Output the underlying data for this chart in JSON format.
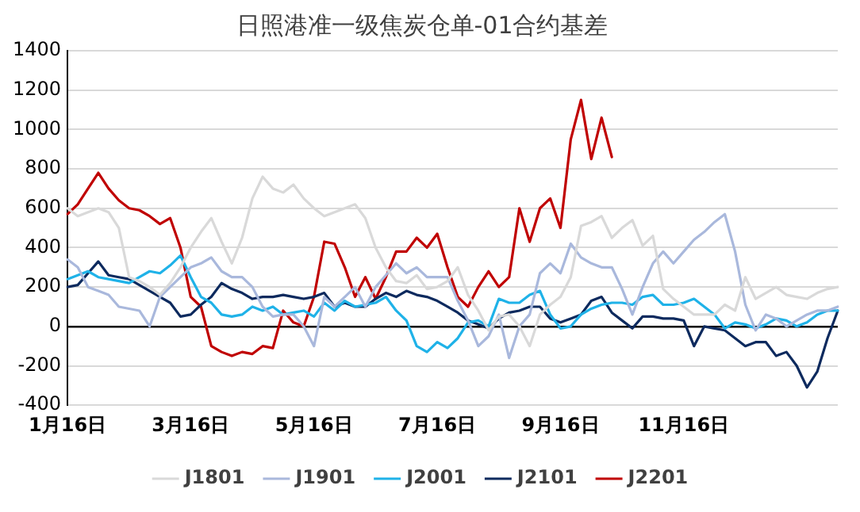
{
  "chart_data": {
    "type": "line",
    "title": "日照港准一级焦炭仓单-01合约基差",
    "categories": [
      "1月16日",
      null,
      null,
      null,
      null,
      null,
      null,
      null,
      null,
      null,
      null,
      null,
      "3月16日",
      null,
      null,
      null,
      null,
      null,
      null,
      null,
      null,
      null,
      null,
      null,
      "5月16日",
      null,
      null,
      null,
      null,
      null,
      null,
      null,
      null,
      null,
      null,
      null,
      "7月16日",
      null,
      null,
      null,
      null,
      null,
      null,
      null,
      null,
      null,
      null,
      null,
      "9月16日",
      null,
      null,
      null,
      null,
      null,
      null,
      null,
      null,
      null,
      null,
      null,
      "11月16日",
      null,
      null,
      null,
      null,
      null,
      null,
      null,
      null,
      null,
      null,
      null,
      null,
      null,
      null,
      null
    ],
    "series": [
      {
        "name": "J1801",
        "color": "#d9d9d9",
        "values": [
          600,
          560,
          580,
          600,
          580,
          500,
          250,
          230,
          200,
          160,
          220,
          300,
          400,
          480,
          550,
          430,
          320,
          450,
          650,
          760,
          700,
          680,
          720,
          650,
          600,
          560,
          580,
          600,
          620,
          550,
          400,
          300,
          230,
          220,
          260,
          190,
          200,
          230,
          300,
          160,
          80,
          -20,
          50,
          60,
          0,
          -100,
          60,
          110,
          150,
          250,
          510,
          530,
          560,
          450,
          500,
          540,
          410,
          460,
          190,
          140,
          100,
          60,
          60,
          60,
          110,
          80,
          250,
          140,
          170,
          200,
          160,
          150,
          140,
          170,
          190,
          200
        ]
      },
      {
        "name": "J1901",
        "color": "#a9b8dc",
        "values": [
          340,
          300,
          200,
          180,
          160,
          100,
          90,
          80,
          0,
          150,
          200,
          250,
          300,
          320,
          350,
          280,
          250,
          250,
          200,
          100,
          50,
          60,
          60,
          0,
          -100,
          150,
          100,
          150,
          200,
          100,
          200,
          260,
          320,
          270,
          300,
          250,
          250,
          250,
          130,
          30,
          -100,
          -50,
          60,
          -160,
          0,
          60,
          270,
          320,
          270,
          420,
          350,
          320,
          300,
          300,
          190,
          60,
          200,
          320,
          380,
          320,
          380,
          440,
          480,
          530,
          570,
          380,
          110,
          -20,
          60,
          40,
          0,
          30,
          60,
          80,
          80,
          100
        ]
      },
      {
        "name": "J2001",
        "color": "#1fb2e8",
        "values": [
          240,
          260,
          280,
          250,
          240,
          230,
          220,
          250,
          280,
          270,
          310,
          360,
          250,
          150,
          120,
          60,
          50,
          60,
          100,
          80,
          100,
          60,
          70,
          80,
          50,
          120,
          80,
          130,
          100,
          110,
          120,
          150,
          80,
          30,
          -100,
          -130,
          -80,
          -110,
          -60,
          20,
          30,
          0,
          140,
          120,
          120,
          160,
          180,
          60,
          -10,
          0,
          60,
          90,
          110,
          120,
          120,
          110,
          150,
          160,
          110,
          110,
          120,
          140,
          100,
          60,
          -10,
          20,
          10,
          -10,
          10,
          40,
          30,
          0,
          20,
          60,
          80,
          80
        ]
      },
      {
        "name": "J2101",
        "color": "#0d2a5e",
        "values": [
          200,
          210,
          270,
          330,
          260,
          250,
          240,
          210,
          180,
          150,
          120,
          50,
          60,
          110,
          150,
          220,
          190,
          170,
          140,
          150,
          150,
          160,
          150,
          140,
          150,
          170,
          100,
          120,
          100,
          100,
          140,
          170,
          150,
          180,
          160,
          150,
          130,
          100,
          70,
          30,
          10,
          -10,
          40,
          70,
          80,
          100,
          100,
          40,
          20,
          40,
          60,
          130,
          150,
          70,
          30,
          -10,
          50,
          50,
          40,
          40,
          30,
          -100,
          0,
          -10,
          -20,
          -60,
          -100,
          -80,
          -80,
          -150,
          -130,
          -200,
          -310,
          -230,
          -60,
          80
        ]
      },
      {
        "name": "J2201",
        "color": "#c00000",
        "values": [
          570,
          620,
          700,
          780,
          700,
          640,
          600,
          590,
          560,
          520,
          550,
          400,
          150,
          100,
          -100,
          -130,
          -150,
          -130,
          -140,
          -100,
          -110,
          80,
          20,
          0,
          150,
          430,
          420,
          300,
          150,
          250,
          140,
          250,
          380,
          380,
          450,
          400,
          470,
          300,
          150,
          100,
          200,
          280,
          200,
          250,
          600,
          430,
          600,
          650,
          500,
          950,
          1150,
          850,
          1060,
          860,
          null,
          null,
          null,
          null,
          null,
          null,
          null,
          null,
          null,
          null,
          null,
          null,
          null,
          null,
          null,
          null,
          null,
          null,
          null,
          null,
          null,
          null
        ]
      }
    ],
    "ylim": [
      -400,
      1400
    ],
    "yticks": [
      -400,
      -200,
      0,
      200,
      400,
      600,
      800,
      1000,
      1200,
      1400
    ],
    "grid": "y",
    "legend": "bottom",
    "marker": "none",
    "line_style": "solid"
  }
}
